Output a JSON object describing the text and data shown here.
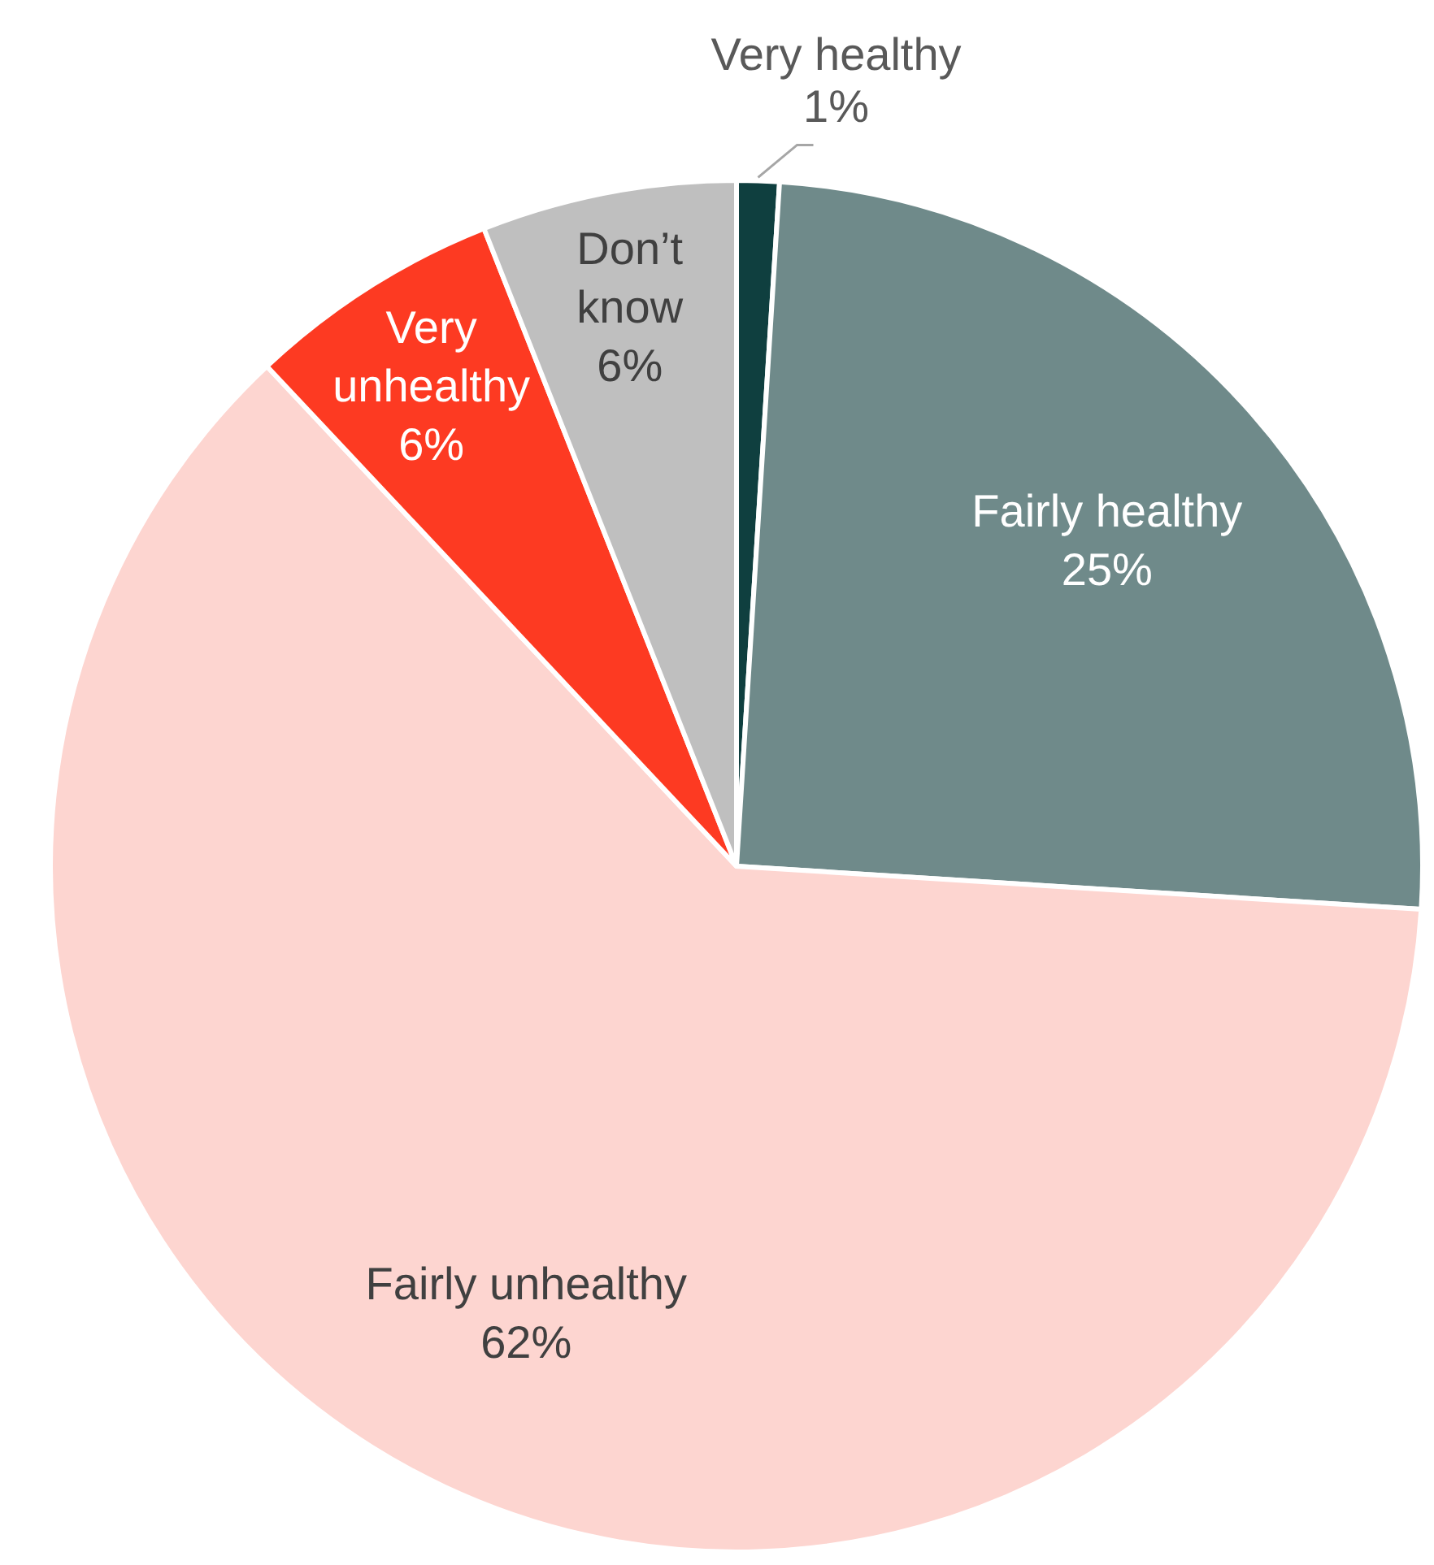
{
  "chart_data": {
    "type": "pie",
    "categories": [
      "Very healthy",
      "Fairly healthy",
      "Fairly unhealthy",
      "Very unhealthy",
      "Don’t know"
    ],
    "values": [
      1,
      25,
      62,
      6,
      6
    ],
    "colors": [
      "#0f3f3f",
      "#6f8a8a",
      "#fdd5d0",
      "#fd3a22",
      "#bfbfbf"
    ],
    "value_labels": [
      "1%",
      "25%",
      "62%",
      "6%",
      "6%"
    ],
    "legend": false
  }
}
